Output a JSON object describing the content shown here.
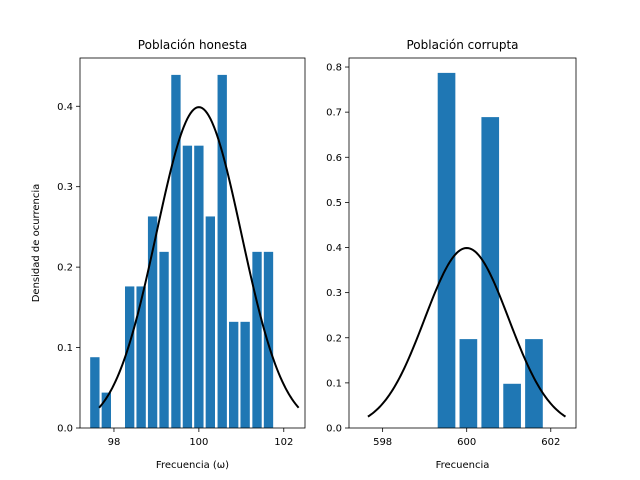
{
  "chart_data": [
    {
      "type": "bar",
      "title": "Población honesta",
      "xlabel": "Frecuencia (ω)",
      "ylabel": "Densidad de ocurrencia",
      "xlim": [
        97.2,
        102.5
      ],
      "ylim": [
        0,
        0.46
      ],
      "xticks": [
        98,
        100,
        102
      ],
      "xtick_labels": [
        "98",
        "100",
        "102"
      ],
      "yticks": [
        0.0,
        0.1,
        0.2,
        0.3,
        0.4
      ],
      "ytick_labels": [
        "0.0",
        "0.1",
        "0.2",
        "0.3",
        "0.4"
      ],
      "bar_width": 0.22,
      "bar_color": "#1f77b4",
      "bars": {
        "x": [
          97.55,
          97.82,
          98.37,
          98.64,
          98.91,
          99.18,
          99.46,
          99.73,
          100.0,
          100.27,
          100.55,
          100.82,
          101.09,
          101.37,
          101.64
        ],
        "values": [
          0.088,
          0.044,
          0.176,
          0.176,
          0.263,
          0.219,
          0.439,
          0.351,
          0.351,
          0.263,
          0.439,
          0.132,
          0.132,
          0.219,
          0.219
        ]
      },
      "curve": {
        "kind": "normal-pdf",
        "mean": 100,
        "std": 1,
        "x_range": [
          97.65,
          102.35
        ],
        "color": "#000000"
      },
      "grid": false,
      "legend": "none"
    },
    {
      "type": "bar",
      "title": "Población corrupta",
      "xlabel": "Frecuencia",
      "ylabel": "",
      "xlim": [
        597.2,
        602.6
      ],
      "ylim": [
        0,
        0.82
      ],
      "xticks": [
        598,
        600,
        602
      ],
      "xtick_labels": [
        "598",
        "600",
        "602"
      ],
      "yticks": [
        0.0,
        0.1,
        0.2,
        0.3,
        0.4,
        0.5,
        0.6,
        0.7,
        0.8
      ],
      "ytick_labels": [
        "0.0",
        "0.1",
        "0.2",
        "0.3",
        "0.4",
        "0.5",
        "0.6",
        "0.7",
        "0.8"
      ],
      "bar_width": 0.42,
      "bar_color": "#1f77b4",
      "bars": {
        "x": [
          599.52,
          600.04,
          600.56,
          601.08,
          601.6
        ],
        "values": [
          0.787,
          0.197,
          0.689,
          0.098,
          0.197
        ]
      },
      "curve": {
        "kind": "normal-pdf",
        "mean": 600,
        "std": 1,
        "x_range": [
          597.65,
          602.35
        ],
        "color": "#000000"
      },
      "grid": false,
      "legend": "none"
    }
  ]
}
